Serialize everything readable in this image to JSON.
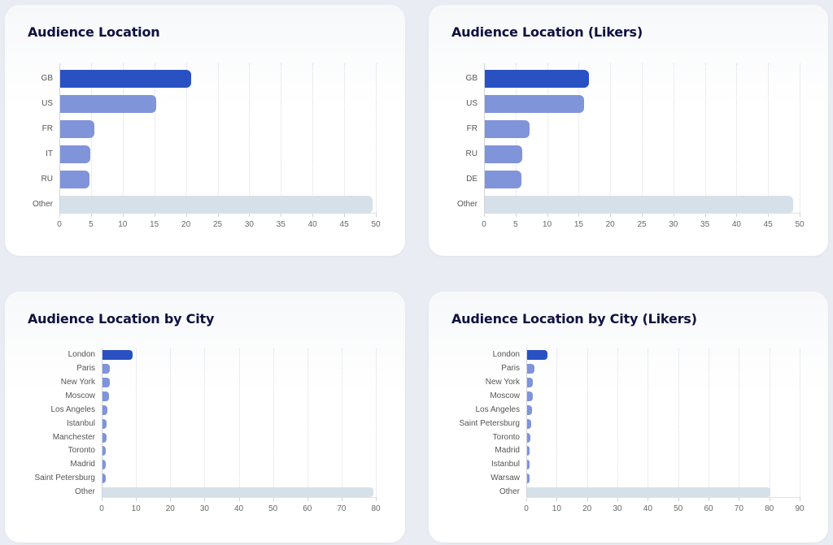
{
  "colors": {
    "primary_bar": "#2a51c2",
    "secondary_bar": "#8094d9",
    "other_bar": "#d6e0e9",
    "title": "#0f1140",
    "background": "#e9edf3"
  },
  "chart_data": [
    {
      "type": "bar",
      "orientation": "horizontal",
      "title": "Audience Location",
      "categories": [
        "GB",
        "US",
        "FR",
        "IT",
        "RU",
        "Other"
      ],
      "values": [
        20.7,
        15.2,
        5.4,
        4.7,
        4.6,
        49.4
      ],
      "xlim": [
        0,
        50
      ],
      "xticks": [
        0,
        5,
        10,
        15,
        20,
        25,
        30,
        35,
        40,
        45,
        50
      ],
      "xlabel": "",
      "ylabel": "",
      "grid": "vertical dotted",
      "legend": "none"
    },
    {
      "type": "bar",
      "orientation": "horizontal",
      "title": "Audience Location (Likers)",
      "categories": [
        "GB",
        "US",
        "FR",
        "RU",
        "DE",
        "Other"
      ],
      "values": [
        16.5,
        15.7,
        7.1,
        5.9,
        5.8,
        48.8
      ],
      "xlim": [
        0,
        50
      ],
      "xticks": [
        0,
        5,
        10,
        15,
        20,
        25,
        30,
        35,
        40,
        45,
        50
      ],
      "xlabel": "",
      "ylabel": "",
      "grid": "vertical dotted",
      "legend": "none"
    },
    {
      "type": "bar",
      "orientation": "horizontal",
      "title": "Audience Location by City",
      "categories": [
        "London",
        "Paris",
        "New York",
        "Moscow",
        "Los Angeles",
        "Istanbul",
        "Manchester",
        "Toronto",
        "Madrid",
        "Saint Petersburg",
        "Other"
      ],
      "values": [
        8.8,
        2.1,
        2.1,
        1.8,
        1.4,
        1.2,
        1.2,
        1.0,
        1.0,
        0.9,
        79.0
      ],
      "xlim": [
        0,
        80
      ],
      "xticks": [
        0,
        10,
        20,
        30,
        40,
        50,
        60,
        70,
        80
      ],
      "xlabel": "",
      "ylabel": "",
      "grid": "vertical dotted",
      "legend": "none"
    },
    {
      "type": "bar",
      "orientation": "horizontal",
      "title": "Audience Location by City (Likers)",
      "categories": [
        "London",
        "Paris",
        "New York",
        "Moscow",
        "Los Angeles",
        "Saint Petersburg",
        "Toronto",
        "Madrid",
        "Istanbul",
        "Warsaw",
        "Other"
      ],
      "values": [
        6.7,
        2.5,
        2.0,
        1.9,
        1.7,
        1.3,
        1.2,
        0.9,
        0.9,
        0.9,
        80.1
      ],
      "xlim": [
        0,
        90
      ],
      "xticks": [
        0,
        10,
        20,
        30,
        40,
        50,
        60,
        70,
        80,
        90
      ],
      "xlabel": "",
      "ylabel": "",
      "grid": "vertical dotted",
      "legend": "none"
    }
  ],
  "cards": [
    {
      "name": "audience-location-card",
      "title": "Audience Location"
    },
    {
      "name": "audience-location-likers-card",
      "title": "Audience Location (Likers)"
    },
    {
      "name": "audience-location-city-card",
      "title": "Audience Location by City"
    },
    {
      "name": "audience-location-city-likers-card",
      "title": "Audience Location by City (Likers)"
    }
  ]
}
